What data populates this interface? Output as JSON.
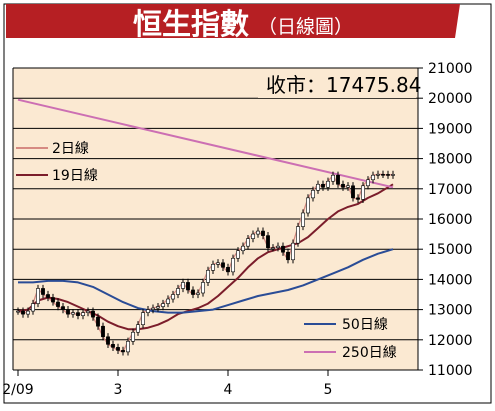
{
  "header": {
    "title": "恒生指數",
    "subtitle": "（日線圖）",
    "bg_color": "#b61f23",
    "title_color": "#ffffff"
  },
  "chart_data": {
    "type": "line",
    "title": "恒生指數",
    "subtitle": "（日線圖）",
    "annotation": "收市：17475.84",
    "close": 17475.84,
    "x_tick_labels": [
      "2/09",
      "3",
      "4",
      "5"
    ],
    "x_tick_days": [
      0,
      20,
      42,
      62
    ],
    "xlim": [
      -1,
      80
    ],
    "ylim": [
      11000,
      21000
    ],
    "y_ticks": [
      11000,
      12000,
      13000,
      14000,
      15000,
      16000,
      17000,
      18000,
      19000,
      20000,
      21000
    ],
    "y_tick_labels": [
      "11000",
      "12000",
      "13000",
      "14000",
      "15000",
      "16000",
      "17000",
      "18000",
      "19000",
      "20000",
      "21000"
    ],
    "grid": true,
    "background": "#fbe9d2",
    "legend_top": [
      "2日線",
      "19日線"
    ],
    "legend_bottom": [
      "50日線",
      "250日線"
    ],
    "series": [
      {
        "name": "2日線",
        "color": "#d68a82",
        "x": [
          0,
          1,
          2,
          3,
          4,
          5,
          6,
          7,
          8,
          9,
          10,
          11,
          12,
          13,
          14,
          15,
          16,
          17,
          18,
          19,
          20,
          21,
          22,
          23,
          24,
          25,
          26,
          27,
          28,
          29,
          30,
          31,
          32,
          33,
          34,
          35,
          36,
          37,
          38,
          39,
          40,
          41,
          42,
          43,
          44,
          45,
          46,
          47,
          48,
          49,
          50,
          51,
          52,
          53,
          54,
          55,
          56,
          57,
          58,
          59,
          60,
          61,
          62,
          63,
          64,
          65,
          66,
          67,
          68,
          69,
          70,
          71,
          72,
          73,
          74,
          75
        ],
        "values": [
          12950,
          12850,
          12950,
          13200,
          13700,
          13500,
          13400,
          13250,
          13100,
          13000,
          12850,
          12900,
          12800,
          12900,
          12950,
          12750,
          12450,
          12100,
          11850,
          11750,
          11650,
          11600,
          11950,
          12250,
          12500,
          12900,
          13000,
          13050,
          13100,
          13200,
          13350,
          13500,
          13700,
          13900,
          13650,
          13500,
          13550,
          13900,
          14300,
          14500,
          14550,
          14400,
          14250,
          14700,
          14950,
          15100,
          15350,
          15500,
          15600,
          15450,
          15050,
          15050,
          15100,
          14900,
          14650,
          15200,
          15750,
          16200,
          16700,
          16950,
          17150,
          17050,
          17250,
          17450,
          17150,
          17050,
          17100,
          16700,
          16650,
          17100,
          17300,
          17450,
          17480,
          17476,
          17450,
          17476
        ]
      },
      {
        "name": "19日線",
        "color": "#7b1d2b",
        "x": [
          0,
          2,
          4,
          6,
          8,
          10,
          12,
          14,
          16,
          18,
          20,
          22,
          24,
          26,
          28,
          30,
          32,
          34,
          36,
          38,
          40,
          42,
          44,
          46,
          48,
          50,
          52,
          54,
          56,
          58,
          60,
          62,
          64,
          66,
          68,
          70,
          72,
          74,
          75
        ],
        "values": [
          12950,
          13000,
          13300,
          13400,
          13350,
          13250,
          13100,
          12950,
          12800,
          12600,
          12450,
          12350,
          12350,
          12400,
          12500,
          12650,
          12850,
          12950,
          13050,
          13200,
          13450,
          13750,
          14050,
          14400,
          14700,
          14900,
          15000,
          15100,
          15200,
          15400,
          15700,
          16000,
          16250,
          16400,
          16500,
          16700,
          16850,
          17050,
          17150
        ]
      },
      {
        "name": "50日線",
        "color": "#2a4c96",
        "x": [
          0,
          3,
          6,
          9,
          12,
          15,
          18,
          21,
          24,
          27,
          30,
          33,
          36,
          39,
          42,
          45,
          48,
          51,
          54,
          57,
          60,
          63,
          66,
          69,
          72,
          75
        ],
        "values": [
          13900,
          13900,
          13950,
          13950,
          13900,
          13750,
          13500,
          13250,
          13050,
          12950,
          12900,
          12900,
          12950,
          13000,
          13150,
          13300,
          13450,
          13550,
          13650,
          13800,
          14000,
          14200,
          14400,
          14650,
          14850,
          15000
        ]
      },
      {
        "name": "250日線",
        "color": "#cc6fb3",
        "x": [
          0,
          75
        ],
        "values": [
          19950,
          17050
        ]
      }
    ]
  }
}
